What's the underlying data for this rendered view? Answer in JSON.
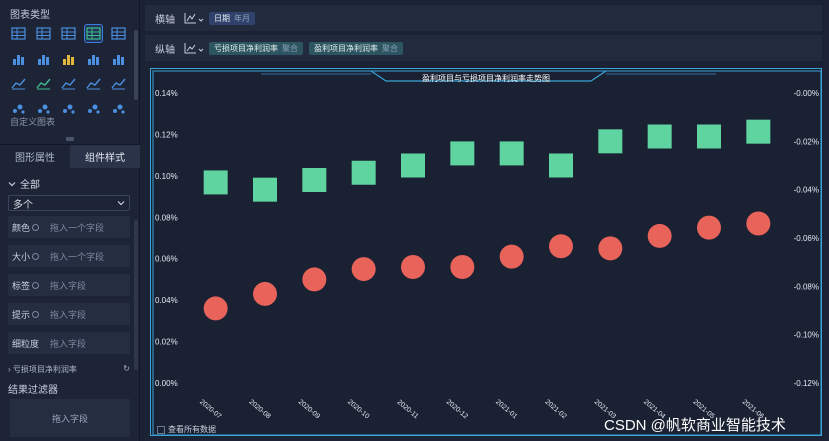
{
  "left_panel": {
    "section_title": "图表类型",
    "custom_chart_label": "自定义图表",
    "chart_type_icons": [
      "table-icon",
      "cross-table-icon",
      "detail-table-icon",
      "grid-table-icon",
      "kpi-number-icon",
      "column-table-icon",
      "bar-group-icon",
      "map-fill-icon",
      "stacked-bar-icon",
      "bar-chart-icon",
      "bar-chart-icon",
      "horizontal-bar-icon",
      "line-bar-icon",
      "multi-line-icon",
      "line-chart-icon",
      "radar-icon",
      "area-chart-icon",
      "scatter-icon",
      "bubble-icon",
      "pie-chart-icon"
    ],
    "tabs": [
      {
        "label": "图形属性"
      },
      {
        "label": "组件样式"
      }
    ],
    "all_label": "全部",
    "dropdown_value": "多个",
    "fields": [
      {
        "label": "颜色",
        "placeholder": "拖入一个字段"
      },
      {
        "label": "大小",
        "placeholder": "拖入一个字段"
      },
      {
        "label": "标签",
        "placeholder": "拖入字段"
      },
      {
        "label": "提示",
        "placeholder": "拖入字段"
      },
      {
        "label": "细粒度",
        "placeholder": "拖入字段"
      }
    ],
    "series_row": "亏损项目净利润率",
    "filter_title": "结果过滤器",
    "filter_placeholder": "拖入字段"
  },
  "x_axis_bar": {
    "label": "横轴",
    "field": "日期",
    "field_sub": "年月"
  },
  "y_axis_bar": {
    "label": "纵轴",
    "fields": [
      {
        "name": "亏损项目净利润率",
        "sub": "聚合"
      },
      {
        "name": "盈利项目净利润率",
        "sub": "聚合"
      }
    ]
  },
  "view_all_label": "查看所有数据",
  "watermark": "CSDN @帆软商业智能技术",
  "colors": {
    "accent": "#3d7ee0",
    "square_series": "#5fd3a0",
    "circle_series": "#e8635a",
    "frame": "#3ba4d8"
  },
  "chart_data": {
    "type": "scatter",
    "title": "盈利项目与亏损项目净利润率走势图",
    "categories": [
      "2020-07",
      "2020-08",
      "2020-09",
      "2020-10",
      "2020-11",
      "2020-12",
      "2021-01",
      "2021-02",
      "2021-03",
      "2021-04",
      "2021-05",
      "2021-06"
    ],
    "left_axis": {
      "ticks": [
        "0.14%",
        "0.12%",
        "0.10%",
        "0.08%",
        "0.06%",
        "0.04%",
        "0.02%",
        "0.00%"
      ],
      "ylim": [
        0,
        0.14
      ]
    },
    "right_axis": {
      "ticks": [
        "-0.00%",
        "-0.02%",
        "-0.04%",
        "-0.06%",
        "-0.08%",
        "-0.10%",
        "-0.12%"
      ],
      "ylim": [
        -0.12,
        0
      ]
    },
    "series": [
      {
        "marker": "circle",
        "axis": "left",
        "values": [
          0.036,
          0.043,
          0.05,
          0.055,
          0.056,
          0.056,
          0.061,
          0.066,
          0.065,
          0.071,
          0.075,
          0.077
        ]
      },
      {
        "marker": "square",
        "axis": "right",
        "values": [
          -0.037,
          -0.04,
          -0.036,
          -0.033,
          -0.03,
          -0.025,
          -0.025,
          -0.03,
          -0.02,
          -0.018,
          -0.018,
          -0.016
        ]
      }
    ],
    "grid": false
  }
}
